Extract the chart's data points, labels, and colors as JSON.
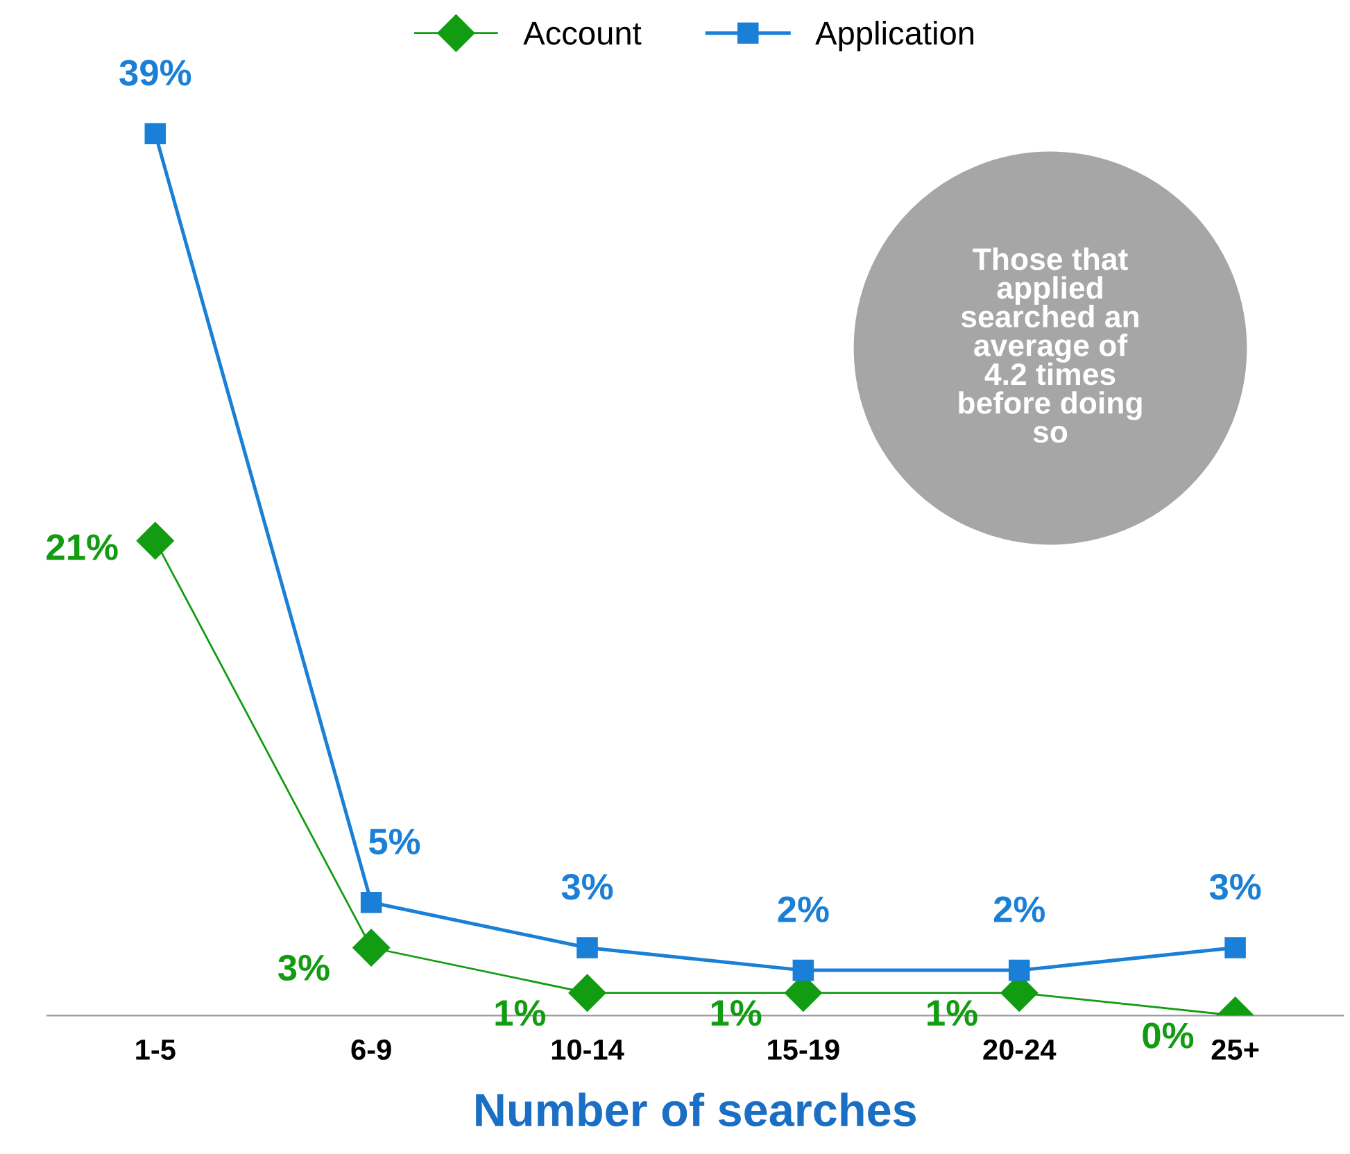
{
  "chart_data": {
    "type": "line",
    "xlabel": "Number of searches",
    "categories": [
      "1-5",
      "6-9",
      "10-14",
      "15-19",
      "20-24",
      "25+"
    ],
    "series": [
      {
        "name": "Account",
        "color": "#119c11",
        "values": [
          21,
          3,
          1,
          1,
          1,
          0
        ],
        "marker": "diamond",
        "value_labels": [
          "21%",
          "3%",
          "1%",
          "1%",
          "1%",
          "0%"
        ]
      },
      {
        "name": "Application",
        "color": "#1a7fd6",
        "values": [
          39,
          5,
          3,
          2,
          2,
          3
        ],
        "marker": "square",
        "value_labels": [
          "39%",
          "5%",
          "3%",
          "2%",
          "2%",
          "3%"
        ]
      }
    ],
    "legend": "top",
    "grid": false,
    "annotations": [
      "Those that\napplied\nsearched an\naverage of\n4.2 times\nbefore doing\nso"
    ]
  }
}
